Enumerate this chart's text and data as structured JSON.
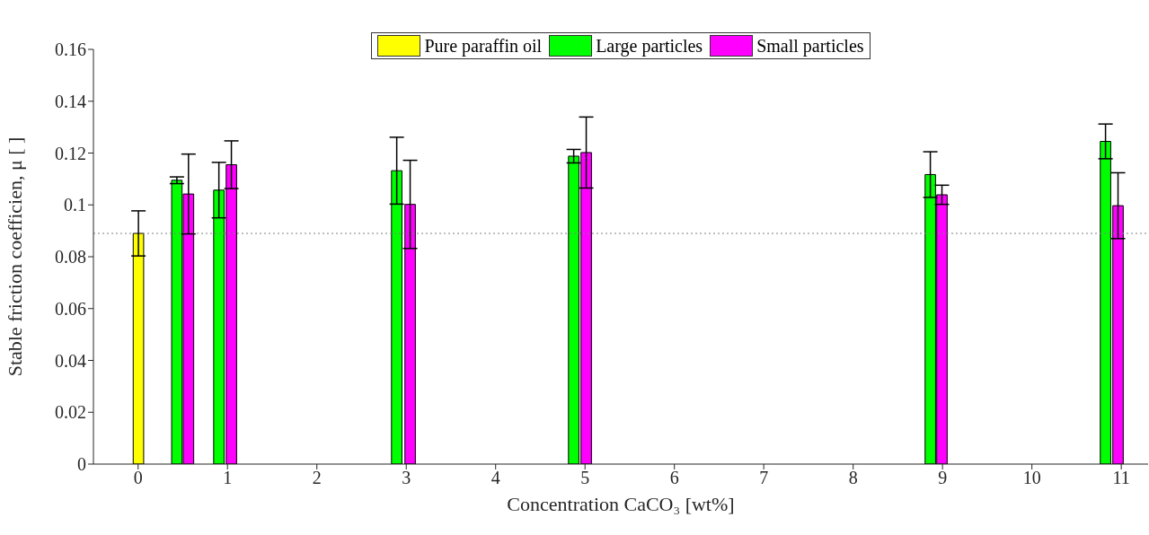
{
  "chart_data": {
    "type": "bar",
    "xlabel": "Concentration CaCO₃ [wt%]",
    "ylabel": "Stable friction coefficien, μ [ ]",
    "xlim": [
      -0.5,
      11.3
    ],
    "xticks": [
      0,
      1,
      2,
      3,
      4,
      5,
      6,
      7,
      8,
      9,
      10,
      11
    ],
    "ylim": [
      0,
      0.16
    ],
    "yticks": [
      0,
      0.02,
      0.04,
      0.06,
      0.08,
      {
        "value": 0.1,
        "label": "0.1"
      },
      0.12,
      0.14,
      0.16
    ],
    "series": [
      {
        "name": "Pure paraffin oil",
        "color": "#ffff00",
        "x": [
          0
        ],
        "values": [
          0.089
        ],
        "errors": [
          0.0087
        ]
      },
      {
        "name": "Large particles",
        "color": "#00ff00",
        "x": [
          0.43,
          0.9,
          2.89,
          4.87,
          8.86,
          10.82
        ],
        "values": [
          0.1095,
          0.1057,
          0.1132,
          0.1188,
          0.1117,
          0.1245
        ],
        "errors": [
          0.0013,
          0.0107,
          0.0129,
          0.0026,
          0.0088,
          0.0067
        ]
      },
      {
        "name": "Small particles",
        "color": "#ff00ff",
        "x": [
          0.56,
          1.04,
          3.04,
          5.01,
          8.99,
          10.96
        ],
        "values": [
          0.1042,
          0.1155,
          0.1002,
          0.1202,
          0.1039,
          0.0997
        ],
        "errors": [
          0.0154,
          0.0092,
          0.017,
          0.0137,
          0.0037,
          0.0127
        ]
      }
    ],
    "ref_lines": [
      {
        "axis": "y",
        "value": 0.089,
        "color": "#808080",
        "line_style": "dotted"
      }
    ],
    "legend": "top",
    "grid": false
  }
}
